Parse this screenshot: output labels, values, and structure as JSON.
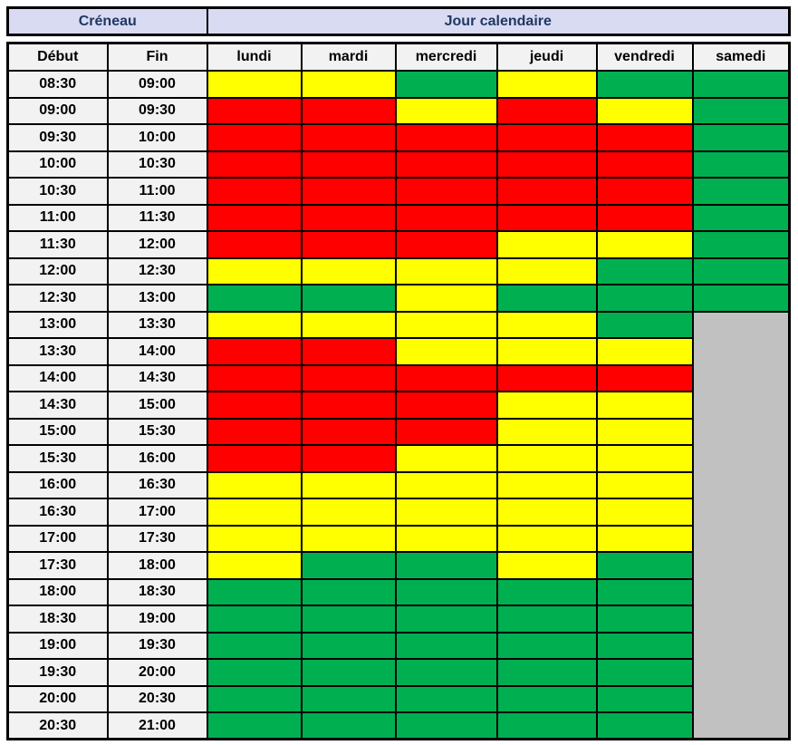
{
  "colors": {
    "red": "#FF0000",
    "yellow": "#FFFF00",
    "green": "#00B050",
    "gray": "#C1C1C1",
    "header_band_bg": "#D9DBF2",
    "header_band_text": "#1F3864",
    "subheader_bg": "#F2F2F2",
    "border": "#000000"
  },
  "header": {
    "creneau": "Créneau",
    "jour": "Jour calendaire"
  },
  "columns": {
    "debut": "Début",
    "fin": "Fin"
  },
  "chart_data": {
    "type": "heatmap",
    "title": "",
    "x_label": "Jour calendaire",
    "y_label": "Créneau",
    "columns": [
      "lundi",
      "mardi",
      "mercredi",
      "jeudi",
      "vendredi",
      "samedi"
    ],
    "cell_states_palette": {
      "red": "#FF0000",
      "yellow": "#FFFF00",
      "green": "#00B050",
      "gray": "#C1C1C1"
    },
    "rows": [
      {
        "start": "08:30",
        "end": "09:00",
        "states": [
          "yellow",
          "yellow",
          "green",
          "yellow",
          "green",
          "green"
        ]
      },
      {
        "start": "09:00",
        "end": "09:30",
        "states": [
          "red",
          "red",
          "yellow",
          "red",
          "yellow",
          "green"
        ]
      },
      {
        "start": "09:30",
        "end": "10:00",
        "states": [
          "red",
          "red",
          "red",
          "red",
          "red",
          "green"
        ]
      },
      {
        "start": "10:00",
        "end": "10:30",
        "states": [
          "red",
          "red",
          "red",
          "red",
          "red",
          "green"
        ]
      },
      {
        "start": "10:30",
        "end": "11:00",
        "states": [
          "red",
          "red",
          "red",
          "red",
          "red",
          "green"
        ]
      },
      {
        "start": "11:00",
        "end": "11:30",
        "states": [
          "red",
          "red",
          "red",
          "red",
          "red",
          "green"
        ]
      },
      {
        "start": "11:30",
        "end": "12:00",
        "states": [
          "red",
          "red",
          "red",
          "yellow",
          "yellow",
          "green"
        ]
      },
      {
        "start": "12:00",
        "end": "12:30",
        "states": [
          "yellow",
          "yellow",
          "yellow",
          "yellow",
          "green",
          "green"
        ]
      },
      {
        "start": "12:30",
        "end": "13:00",
        "states": [
          "green",
          "green",
          "yellow",
          "green",
          "green",
          "green"
        ]
      },
      {
        "start": "13:00",
        "end": "13:30",
        "states": [
          "yellow",
          "yellow",
          "yellow",
          "yellow",
          "green",
          "gray"
        ]
      },
      {
        "start": "13:30",
        "end": "14:00",
        "states": [
          "red",
          "red",
          "yellow",
          "yellow",
          "yellow",
          "gray"
        ]
      },
      {
        "start": "14:00",
        "end": "14:30",
        "states": [
          "red",
          "red",
          "red",
          "red",
          "red",
          "gray"
        ]
      },
      {
        "start": "14:30",
        "end": "15:00",
        "states": [
          "red",
          "red",
          "red",
          "yellow",
          "yellow",
          "gray"
        ]
      },
      {
        "start": "15:00",
        "end": "15:30",
        "states": [
          "red",
          "red",
          "red",
          "yellow",
          "yellow",
          "gray"
        ]
      },
      {
        "start": "15:30",
        "end": "16:00",
        "states": [
          "red",
          "red",
          "yellow",
          "yellow",
          "yellow",
          "gray"
        ]
      },
      {
        "start": "16:00",
        "end": "16:30",
        "states": [
          "yellow",
          "yellow",
          "yellow",
          "yellow",
          "yellow",
          "gray"
        ]
      },
      {
        "start": "16:30",
        "end": "17:00",
        "states": [
          "yellow",
          "yellow",
          "yellow",
          "yellow",
          "yellow",
          "gray"
        ]
      },
      {
        "start": "17:00",
        "end": "17:30",
        "states": [
          "yellow",
          "yellow",
          "yellow",
          "yellow",
          "yellow",
          "gray"
        ]
      },
      {
        "start": "17:30",
        "end": "18:00",
        "states": [
          "yellow",
          "green",
          "green",
          "yellow",
          "green",
          "gray"
        ]
      },
      {
        "start": "18:00",
        "end": "18:30",
        "states": [
          "green",
          "green",
          "green",
          "green",
          "green",
          "gray"
        ]
      },
      {
        "start": "18:30",
        "end": "19:00",
        "states": [
          "green",
          "green",
          "green",
          "green",
          "green",
          "gray"
        ]
      },
      {
        "start": "19:00",
        "end": "19:30",
        "states": [
          "green",
          "green",
          "green",
          "green",
          "green",
          "gray"
        ]
      },
      {
        "start": "19:30",
        "end": "20:00",
        "states": [
          "green",
          "green",
          "green",
          "green",
          "green",
          "gray"
        ]
      },
      {
        "start": "20:00",
        "end": "20:30",
        "states": [
          "green",
          "green",
          "green",
          "green",
          "green",
          "gray"
        ]
      },
      {
        "start": "20:30",
        "end": "21:00",
        "states": [
          "green",
          "green",
          "green",
          "green",
          "green",
          "gray"
        ]
      }
    ]
  }
}
